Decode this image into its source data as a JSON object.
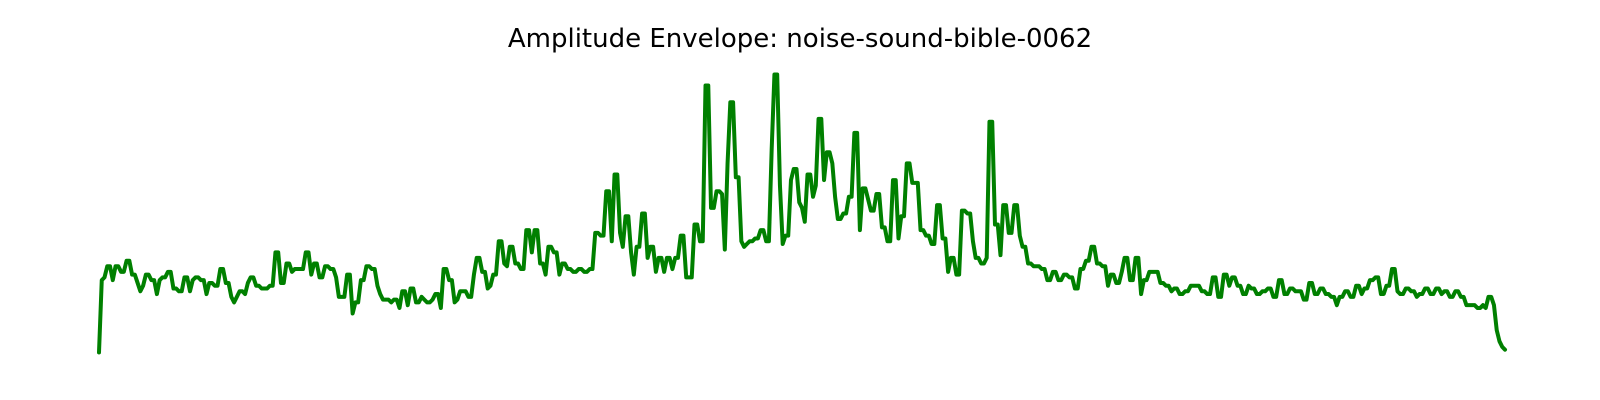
{
  "chart_data": {
    "type": "line",
    "title": "Amplitude Envelope: noise-sound-bible-0062",
    "xlabel": "",
    "ylabel": "",
    "axes_visible": false,
    "grid": false,
    "line_color": "#008000",
    "ylim": [
      0,
      1.0
    ],
    "series": [
      {
        "values": [
          0.02,
          0.28,
          0.29,
          0.33,
          0.33,
          0.28,
          0.33,
          0.33,
          0.31,
          0.31,
          0.35,
          0.35,
          0.3,
          0.3,
          0.27,
          0.24,
          0.26,
          0.3,
          0.3,
          0.28,
          0.28,
          0.23,
          0.28,
          0.29,
          0.29,
          0.31,
          0.31,
          0.25,
          0.25,
          0.24,
          0.24,
          0.29,
          0.29,
          0.24,
          0.28,
          0.29,
          0.29,
          0.28,
          0.28,
          0.23,
          0.27,
          0.27,
          0.26,
          0.26,
          0.32,
          0.32,
          0.27,
          0.27,
          0.22,
          0.2,
          0.22,
          0.24,
          0.24,
          0.23,
          0.27,
          0.29,
          0.29,
          0.26,
          0.26,
          0.25,
          0.25,
          0.25,
          0.26,
          0.26,
          0.38,
          0.38,
          0.27,
          0.27,
          0.34,
          0.34,
          0.31,
          0.32,
          0.32,
          0.32,
          0.32,
          0.38,
          0.38,
          0.3,
          0.34,
          0.34,
          0.29,
          0.29,
          0.33,
          0.33,
          0.32,
          0.32,
          0.29,
          0.22,
          0.22,
          0.22,
          0.3,
          0.3,
          0.16,
          0.2,
          0.2,
          0.28,
          0.28,
          0.33,
          0.33,
          0.32,
          0.32,
          0.26,
          0.23,
          0.21,
          0.21,
          0.21,
          0.2,
          0.21,
          0.21,
          0.18,
          0.24,
          0.24,
          0.19,
          0.25,
          0.25,
          0.2,
          0.2,
          0.22,
          0.21,
          0.2,
          0.2,
          0.21,
          0.23,
          0.23,
          0.18,
          0.32,
          0.32,
          0.28,
          0.28,
          0.2,
          0.21,
          0.24,
          0.24,
          0.24,
          0.22,
          0.22,
          0.3,
          0.36,
          0.36,
          0.31,
          0.31,
          0.25,
          0.26,
          0.3,
          0.3,
          0.42,
          0.42,
          0.34,
          0.33,
          0.4,
          0.4,
          0.34,
          0.34,
          0.32,
          0.32,
          0.46,
          0.46,
          0.38,
          0.46,
          0.46,
          0.34,
          0.34,
          0.3,
          0.4,
          0.4,
          0.38,
          0.38,
          0.3,
          0.34,
          0.34,
          0.32,
          0.32,
          0.31,
          0.31,
          0.32,
          0.32,
          0.31,
          0.31,
          0.32,
          0.32,
          0.45,
          0.45,
          0.44,
          0.44,
          0.6,
          0.6,
          0.42,
          0.66,
          0.66,
          0.45,
          0.4,
          0.51,
          0.51,
          0.38,
          0.3,
          0.4,
          0.4,
          0.52,
          0.52,
          0.36,
          0.4,
          0.4,
          0.31,
          0.36,
          0.36,
          0.31,
          0.36,
          0.36,
          0.32,
          0.36,
          0.36,
          0.44,
          0.44,
          0.29,
          0.29,
          0.29,
          0.48,
          0.48,
          0.42,
          0.42,
          0.98,
          0.98,
          0.54,
          0.54,
          0.6,
          0.6,
          0.59,
          0.39,
          0.7,
          0.92,
          0.92,
          0.65,
          0.65,
          0.42,
          0.4,
          0.41,
          0.42,
          0.42,
          0.43,
          0.43,
          0.46,
          0.46,
          0.42,
          0.42,
          0.75,
          1.02,
          1.02,
          0.62,
          0.41,
          0.44,
          0.44,
          0.64,
          0.68,
          0.68,
          0.56,
          0.54,
          0.49,
          0.66,
          0.66,
          0.58,
          0.62,
          0.86,
          0.86,
          0.64,
          0.74,
          0.74,
          0.7,
          0.58,
          0.5,
          0.5,
          0.52,
          0.52,
          0.58,
          0.58,
          0.81,
          0.81,
          0.46,
          0.61,
          0.61,
          0.57,
          0.53,
          0.53,
          0.59,
          0.59,
          0.47,
          0.47,
          0.42,
          0.42,
          0.64,
          0.64,
          0.43,
          0.51,
          0.51,
          0.7,
          0.7,
          0.63,
          0.63,
          0.63,
          0.46,
          0.46,
          0.44,
          0.44,
          0.41,
          0.41,
          0.55,
          0.55,
          0.43,
          0.43,
          0.31,
          0.36,
          0.36,
          0.3,
          0.3,
          0.53,
          0.53,
          0.52,
          0.52,
          0.42,
          0.36,
          0.36,
          0.34,
          0.34,
          0.36,
          0.85,
          0.85,
          0.48,
          0.48,
          0.37,
          0.55,
          0.55,
          0.45,
          0.45,
          0.55,
          0.55,
          0.44,
          0.4,
          0.4,
          0.34,
          0.34,
          0.33,
          0.33,
          0.33,
          0.32,
          0.32,
          0.28,
          0.28,
          0.31,
          0.31,
          0.28,
          0.28,
          0.3,
          0.3,
          0.29,
          0.29,
          0.25,
          0.25,
          0.32,
          0.32,
          0.35,
          0.35,
          0.4,
          0.4,
          0.34,
          0.34,
          0.33,
          0.33,
          0.26,
          0.3,
          0.3,
          0.27,
          0.27,
          0.31,
          0.36,
          0.36,
          0.28,
          0.28,
          0.36,
          0.36,
          0.23,
          0.28,
          0.28,
          0.31,
          0.31,
          0.31,
          0.31,
          0.27,
          0.27,
          0.26,
          0.26,
          0.24,
          0.25,
          0.25,
          0.23,
          0.23,
          0.24,
          0.24,
          0.26,
          0.26,
          0.26,
          0.26,
          0.24,
          0.24,
          0.23,
          0.23,
          0.29,
          0.29,
          0.22,
          0.22,
          0.3,
          0.3,
          0.26,
          0.29,
          0.29,
          0.26,
          0.26,
          0.23,
          0.23,
          0.26,
          0.25,
          0.25,
          0.23,
          0.23,
          0.24,
          0.24,
          0.25,
          0.25,
          0.22,
          0.22,
          0.28,
          0.28,
          0.23,
          0.23,
          0.25,
          0.25,
          0.24,
          0.24,
          0.24,
          0.21,
          0.21,
          0.27,
          0.27,
          0.23,
          0.23,
          0.25,
          0.25,
          0.23,
          0.23,
          0.22,
          0.22,
          0.19,
          0.22,
          0.22,
          0.24,
          0.24,
          0.22,
          0.22,
          0.26,
          0.26,
          0.23,
          0.25,
          0.25,
          0.28,
          0.28,
          0.29,
          0.29,
          0.23,
          0.23,
          0.26,
          0.26,
          0.32,
          0.32,
          0.24,
          0.23,
          0.23,
          0.25,
          0.25,
          0.24,
          0.24,
          0.22,
          0.23,
          0.23,
          0.25,
          0.25,
          0.23,
          0.23,
          0.25,
          0.25,
          0.23,
          0.24,
          0.24,
          0.22,
          0.22,
          0.24,
          0.24,
          0.22,
          0.22,
          0.19,
          0.19,
          0.19,
          0.19,
          0.18,
          0.18,
          0.19,
          0.18,
          0.22,
          0.22,
          0.19,
          0.1,
          0.06,
          0.04,
          0.03
        ]
      }
    ]
  }
}
